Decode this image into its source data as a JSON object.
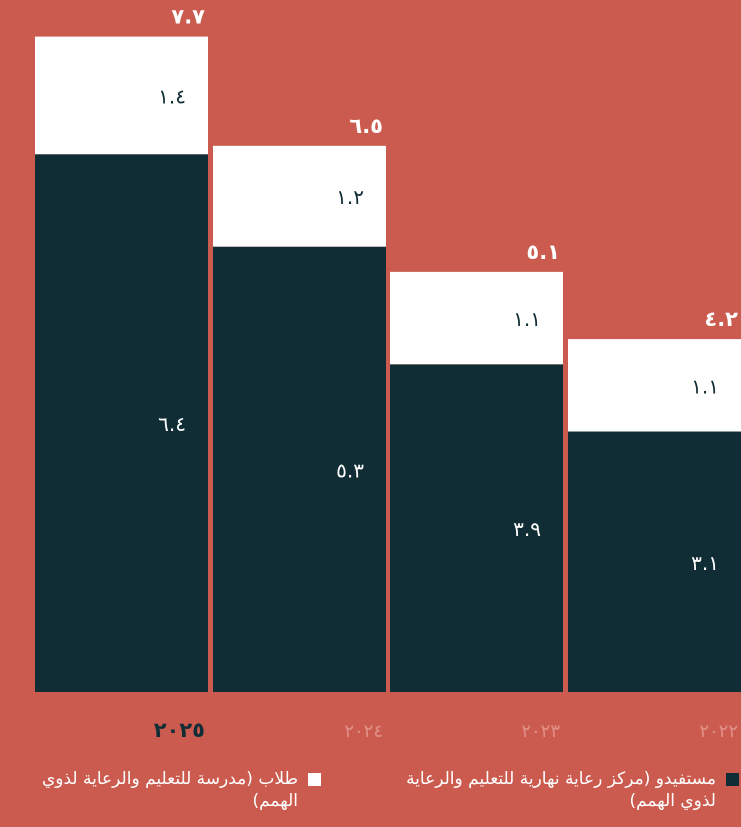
{
  "chart_data": {
    "type": "bar",
    "stacked": true,
    "categories": [
      "٢٠٢٥",
      "٢٠٢٤",
      "٢٠٢٣",
      "٢٠٢٢"
    ],
    "category_values": [
      2025,
      2024,
      2023,
      2022
    ],
    "highlighted_category": "٢٠٢٥",
    "series": [
      {
        "name": "مستفيدو (مركز رعاية نهارية للتعليم والرعاية لذوي الهمم)",
        "color": "#102d35",
        "values": [
          6.4,
          5.3,
          3.9,
          3.1
        ],
        "labels": [
          "٦.٤",
          "٥.٣",
          "٣.٩",
          "٣.١"
        ]
      },
      {
        "name": "طلاب (مدرسة للتعليم والرعاية لذوي الهمم)",
        "color": "#ffffff",
        "values": [
          1.4,
          1.2,
          1.1,
          1.1
        ],
        "labels": [
          "١.٤",
          "١.٢",
          "١.١",
          "١.١"
        ]
      }
    ],
    "totals": [
      7.7,
      6.5,
      5.1,
      4.2
    ],
    "total_labels": [
      "٧.٧",
      "٦.٥",
      "٥.١",
      "٤.٢"
    ],
    "ylim": [
      0,
      7.7
    ],
    "legend_position": "bottom",
    "grid": false
  },
  "legend": {
    "items": [
      {
        "label": "مستفيدو (مركز رعاية نهارية للتعليم والرعاية لذوي الهمم)"
      },
      {
        "label": "طلاب (مدرسة للتعليم والرعاية لذوي الهمم)"
      }
    ]
  },
  "colors": {
    "background": "#cb5b4f",
    "dark_series": "#102d35",
    "light_series": "#ffffff",
    "muted_axis_text": "#e29088",
    "highlight_axis_text": "#102d35"
  }
}
